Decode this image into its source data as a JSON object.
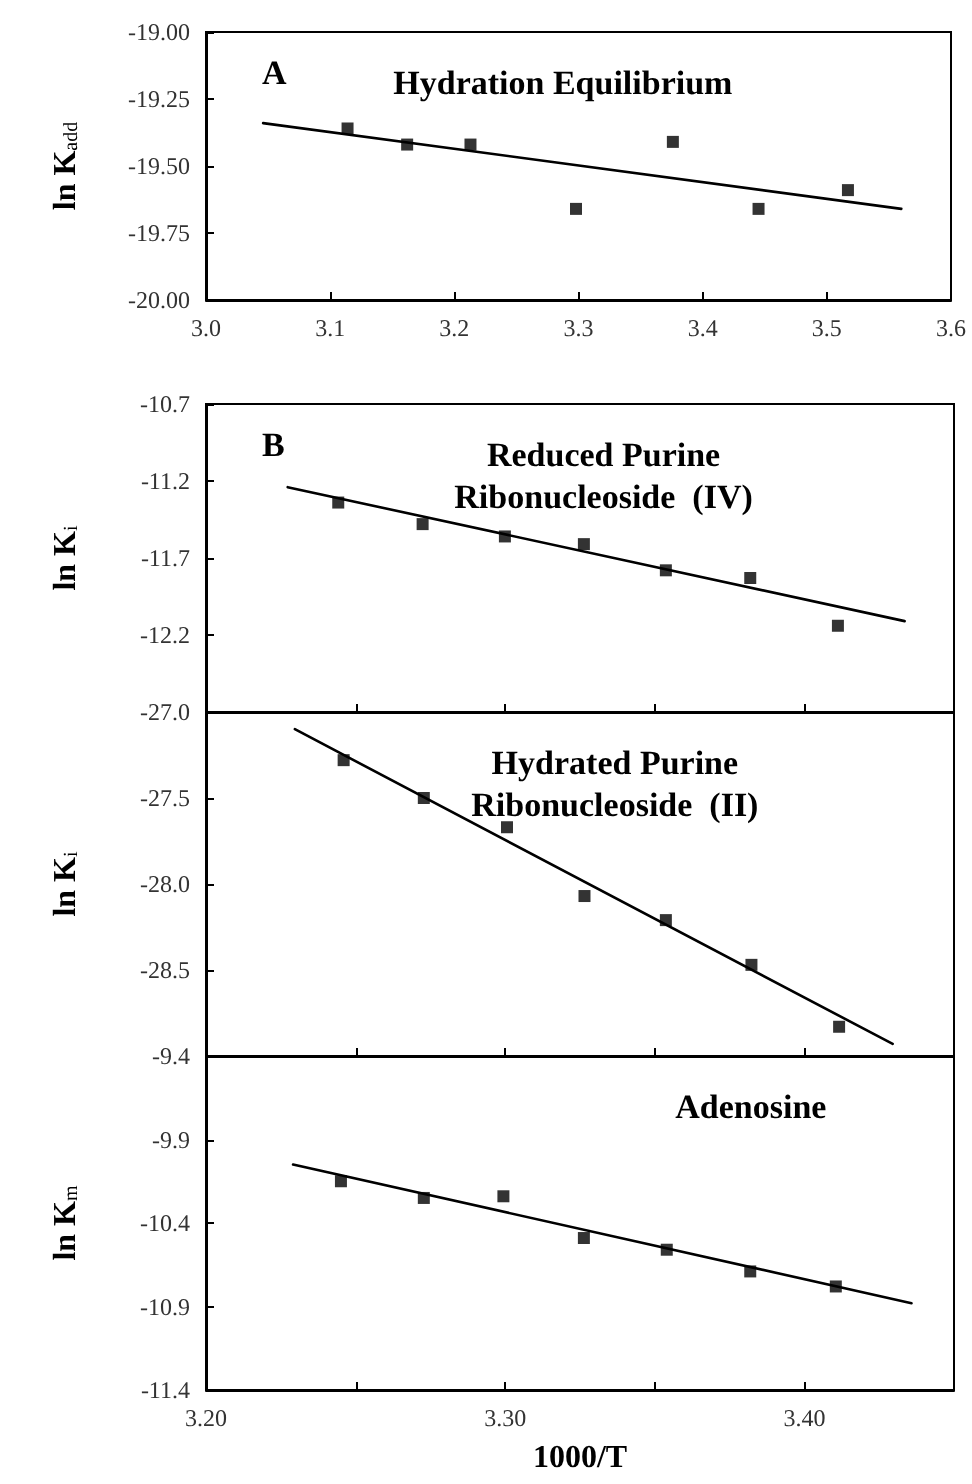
{
  "chart_data": [
    {
      "type": "scatter",
      "title": "Hydration Equilibrium",
      "ylabel": "ln K$_{add}$",
      "annotations": [
        "A"
      ],
      "xlim": [
        3.0,
        3.6
      ],
      "ylim": [
        -20,
        -19
      ],
      "xticks": [
        {
          "value": 3.0,
          "label": "3.0"
        },
        3.1,
        3.2,
        3.3,
        3.4,
        3.5,
        3.6
      ],
      "yticks": [
        {
          "value": -19,
          "label": "-19.00"
        },
        -19.25,
        {
          "value": -19.5,
          "label": "-19.50"
        },
        -19.75,
        {
          "value": -20,
          "label": "-20.00"
        }
      ],
      "series": [
        {
          "marker": "square",
          "color": "#000000",
          "x": [
            3.114,
            3.162,
            3.213,
            3.298,
            3.376,
            3.445,
            3.517
          ],
          "values": [
            -19.36,
            -19.42,
            -19.42,
            -19.66,
            -19.41,
            -19.66,
            -19.59
          ]
        },
        {
          "type": "line",
          "marker": "none",
          "line_style": "solid",
          "color": "#000000",
          "x": [
            3.046,
            3.56
          ],
          "values": [
            -19.34,
            -19.66
          ]
        }
      ]
    },
    {
      "type": "scatter",
      "title": "Reduced Purine\nRibonucleoside  (IV)",
      "ylabel": "ln K$_{i}$",
      "annotations": [
        "B"
      ],
      "tick_labels": "y",
      "xlim": [
        3.2,
        3.45
      ],
      "ylim": [
        -12.7,
        -10.7
      ],
      "xticks": [
        {
          "value": 3.2,
          "label": null
        },
        {
          "value": 3.25,
          "label": null
        },
        {
          "value": 3.3,
          "label": null
        },
        {
          "value": 3.35,
          "label": null
        },
        {
          "value": 3.4,
          "label": null
        }
      ],
      "yticks": [
        -10.7,
        -11.2,
        -11.7,
        -12.2,
        {
          "value": -12.7,
          "label": null
        }
      ],
      "series": [
        {
          "marker": "square",
          "color": "#000000",
          "x": [
            3.2442,
            3.2724,
            3.2999,
            3.3263,
            3.3537,
            3.3819,
            3.4112
          ],
          "values": [
            -11.34,
            -11.48,
            -11.56,
            -11.61,
            -11.78,
            -11.83,
            -12.14
          ]
        },
        {
          "type": "line",
          "marker": "none",
          "line_style": "solid",
          "color": "#000000",
          "x": [
            3.2273,
            3.4335
          ],
          "values": [
            -11.24,
            -12.11
          ]
        }
      ]
    },
    {
      "type": "scatter",
      "title": "Hydrated Purine\nRibonucleoside  (II)",
      "ylabel": "ln K$_{i}$",
      "tick_labels": "y",
      "xlim": [
        3.2,
        3.45
      ],
      "ylim": [
        -29,
        -27
      ],
      "xticks": [
        {
          "value": 3.2,
          "label": null
        },
        {
          "value": 3.25,
          "label": null
        },
        {
          "value": 3.3,
          "label": null
        },
        {
          "value": 3.35,
          "label": null
        },
        {
          "value": 3.4,
          "label": null
        }
      ],
      "yticks": [
        {
          "value": -27,
          "label": "-27.0"
        },
        -27.5,
        {
          "value": -28,
          "label": "-28.0"
        },
        -28.5,
        {
          "value": -29,
          "label": null
        }
      ],
      "series": [
        {
          "marker": "square",
          "color": "#000000",
          "x": [
            3.246,
            3.2728,
            3.3006,
            3.3265,
            3.3537,
            3.3823,
            3.4116
          ],
          "values": [
            -27.28,
            -27.5,
            -27.67,
            -28.07,
            -28.21,
            -28.47,
            -28.83
          ]
        },
        {
          "type": "line",
          "marker": "none",
          "line_style": "solid",
          "color": "#000000",
          "x": [
            3.2297,
            3.4295
          ],
          "values": [
            -27.1,
            -28.93
          ]
        }
      ]
    },
    {
      "type": "scatter",
      "title": "Adenosine",
      "ylabel": "ln K$_{m}$",
      "xlabel": "1000/T",
      "xlim": [
        3.2,
        3.45
      ],
      "ylim": [
        -11.4,
        -9.4
      ],
      "xticks": [
        {
          "value": 3.2,
          "label": "3.20"
        },
        {
          "value": 3.25,
          "label": null
        },
        {
          "value": 3.3,
          "label": "3.30"
        },
        {
          "value": 3.35,
          "label": null
        },
        {
          "value": 3.4,
          "label": "3.40"
        }
      ],
      "yticks": [
        -9.4,
        -9.9,
        -10.4,
        -10.9,
        -11.4
      ],
      "series": [
        {
          "marker": "square",
          "color": "#000000",
          "x": [
            3.2451,
            3.2728,
            3.2994,
            3.3263,
            3.354,
            3.3819,
            3.4105
          ],
          "values": [
            -10.15,
            -10.25,
            -10.24,
            -10.49,
            -10.56,
            -10.69,
            -10.78
          ]
        },
        {
          "type": "line",
          "marker": "none",
          "line_style": "solid",
          "color": "#000000",
          "x": [
            3.2291,
            3.4358
          ],
          "values": [
            -10.05,
            -10.88
          ]
        }
      ]
    }
  ]
}
